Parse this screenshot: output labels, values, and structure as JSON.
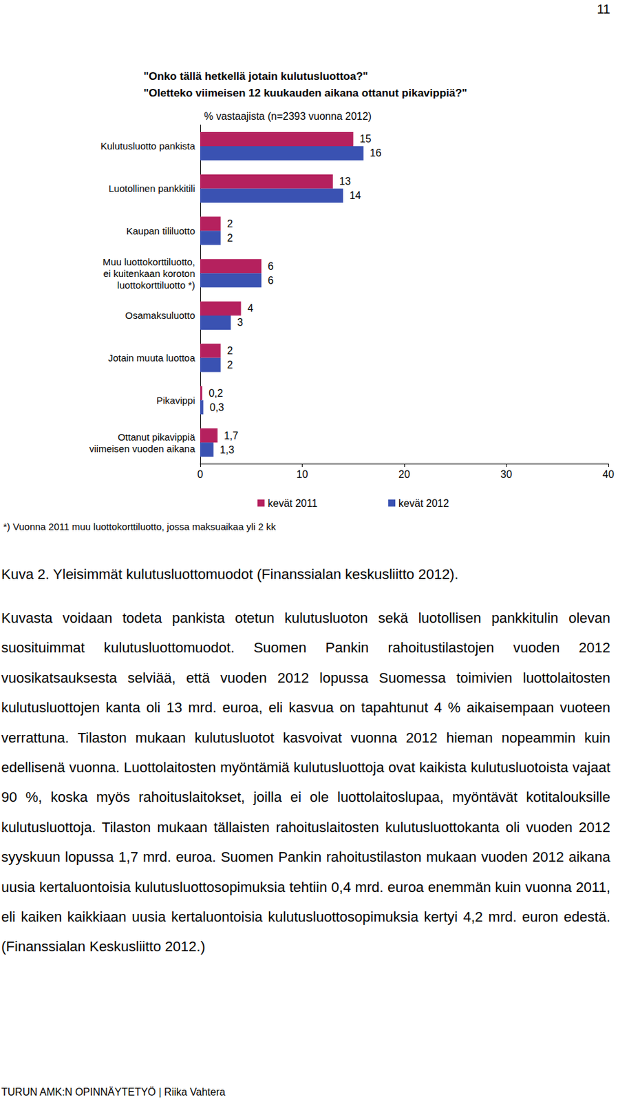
{
  "page_number": "11",
  "chart_data": {
    "type": "bar",
    "orientation": "horizontal",
    "title": "\"Onko tällä hetkellä jotain kulutusluottoa?\"\n\"Oletteko viimeisen 12 kuukauden aikana ottanut pikavippiä?\"",
    "subtitle": "% vastaajista (n=2393 vuonna 2012)",
    "footnote": "*) Vuonna 2011 muu luottokorttiluotto, jossa maksuaikaa yli 2 kk",
    "categories": [
      "Kulutusluotto pankista",
      "Luotollinen pankkitili",
      "Kaupan tililuotto",
      "Muu luottokorttiluotto,\nei kuitenkaan koroton\nluottokorttiluotto *)",
      "Osamaksuluotto",
      "Jotain muuta luottoa",
      "Pikavippi",
      "Ottanut pikavippiä\nviimeisen vuoden aikana"
    ],
    "series": [
      {
        "name": "kevät 2011",
        "color": "#b5215e",
        "values": [
          15,
          13,
          2,
          6,
          4,
          2,
          0.2,
          1.7
        ],
        "value_labels": [
          "15",
          "13",
          "2",
          "6",
          "4",
          "2",
          "0,2",
          "1,7"
        ]
      },
      {
        "name": "kevät 2012",
        "color": "#3a52b2",
        "values": [
          16,
          14,
          2,
          6,
          3,
          2,
          0.3,
          1.3
        ],
        "value_labels": [
          "16",
          "14",
          "2",
          "6",
          "3",
          "2",
          "0,3",
          "1,3"
        ]
      }
    ],
    "xlim": [
      0,
      40
    ],
    "xticks": [
      0,
      10,
      20,
      30,
      40
    ],
    "grid": false,
    "legend": "bottom",
    "data_labels": true
  },
  "caption": "Kuva 2. Yleisimmät kulutusluottomuodot (Finanssialan keskusliitto 2012).",
  "paragraph": "Kuvasta voidaan todeta pankista otetun kulutusluoton sekä luotollisen pankkitulin olevan suosituimmat kulutusluottomuodot. Suomen Pankin rahoitustilastojen vuoden 2012 vuosikatsauksesta selviää, että vuoden 2012 lopussa Suomessa toimivien luottolaitosten kulutusluottojen kanta oli 13 mrd. euroa, eli kasvua on tapahtunut 4 % aikaisempaan vuoteen verrattuna. Tilaston mukaan kulutusluotot kasvoivat vuonna 2012 hieman nopeammin kuin edellisenä vuonna. Luottolaitosten myöntämiä kulutusluottoja ovat kaikista kulutusluotoista vajaat 90 %, koska myös rahoituslaitokset, joilla ei ole luottolaitoslupaa, myöntävät kotitalouksille kulutusluottoja. Tilaston mukaan tällaisten rahoituslaitosten kulutusluottokanta oli vuoden 2012 syyskuun lopussa 1,7 mrd. euroa. Suomen Pankin rahoitustilaston mukaan vuoden 2012 aikana uusia kertaluontoisia kulutusluottosopimuksia tehtiin 0,4 mrd. euroa enemmän kuin vuonna 2011, eli kaiken kaikkiaan uusia kertaluontoisia kulutusluottosopimuksia kertyi 4,2 mrd. euron edestä. (Finanssialan Keskusliitto 2012.)",
  "footer": "TURUN AMK:N OPINNÄYTETYÖ | Riika Vahtera"
}
